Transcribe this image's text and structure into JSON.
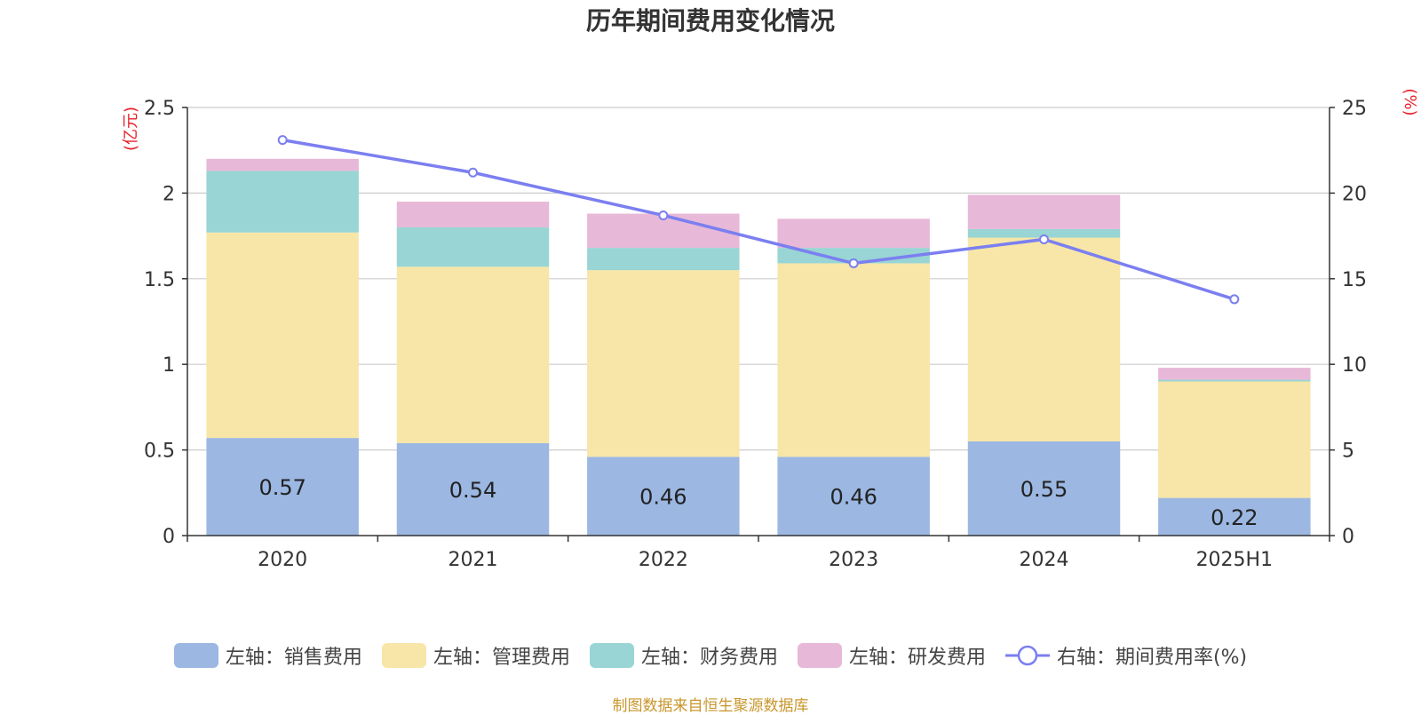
{
  "chart_data": {
    "type": "bar",
    "stacked": true,
    "title": "历年期间费用变化情况",
    "categories": [
      "2020",
      "2021",
      "2022",
      "2023",
      "2024",
      "2025H1"
    ],
    "y_left": {
      "unit_label": "(亿元)",
      "ylim": [
        0,
        2.5
      ],
      "ticks": [
        "0",
        "0.5",
        "1",
        "1.5",
        "2",
        "2.5"
      ],
      "tick_values": [
        0,
        0.5,
        1,
        1.5,
        2,
        2.5
      ]
    },
    "y_right": {
      "unit_label": "(%)",
      "ylim": [
        0,
        25
      ],
      "ticks": [
        "0",
        "5",
        "10",
        "15",
        "20",
        "25"
      ],
      "tick_values": [
        0,
        5,
        10,
        15,
        20,
        25
      ]
    },
    "series": [
      {
        "name": "左轴：销售费用",
        "axis": "left",
        "color": "#9bb7e2",
        "values": [
          0.57,
          0.54,
          0.46,
          0.46,
          0.55,
          0.22
        ],
        "labels": [
          "0.57",
          "0.54",
          "0.46",
          "0.46",
          "0.55",
          "0.22"
        ]
      },
      {
        "name": "左轴：管理费用",
        "axis": "left",
        "color": "#f7e6a7",
        "values": [
          1.2,
          1.03,
          1.09,
          1.13,
          1.19,
          0.68
        ]
      },
      {
        "name": "左轴：财务费用",
        "axis": "left",
        "color": "#98d5d4",
        "values": [
          0.36,
          0.23,
          0.13,
          0.09,
          0.05,
          0.01
        ]
      },
      {
        "name": "左轴：研发费用",
        "axis": "left",
        "color": "#e8b8d8",
        "values": [
          0.07,
          0.15,
          0.2,
          0.17,
          0.2,
          0.07
        ]
      },
      {
        "name": "右轴：期间费用率(%)",
        "axis": "right",
        "type": "line",
        "color": "#7b7ff0",
        "values": [
          23.1,
          21.2,
          18.7,
          15.9,
          17.3,
          13.8
        ]
      }
    ],
    "grid": true,
    "legend_position": "bottom"
  },
  "source_note": "制图数据来自恒生聚源数据库"
}
